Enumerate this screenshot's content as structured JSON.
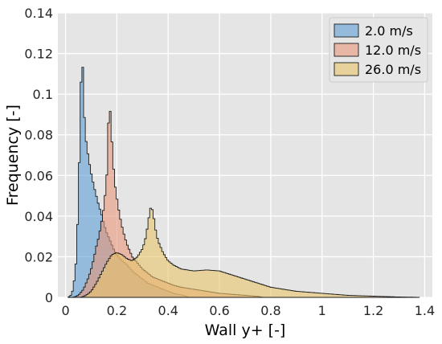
{
  "chart_data": {
    "type": "histogram",
    "title": "",
    "xlabel": "Wall y+ [-]",
    "ylabel": "Frequency [-]",
    "xlim": [
      -0.03,
      1.43
    ],
    "ylim": [
      0,
      0.14
    ],
    "xticks": [
      0,
      0.2,
      0.4,
      0.6,
      0.8,
      1,
      1.2,
      1.4
    ],
    "xtick_labels": [
      "0",
      "0.2",
      "0.4",
      "0.6",
      "0.8",
      "1",
      "1.2",
      "1.4"
    ],
    "yticks": [
      0,
      0.02,
      0.04,
      0.06,
      0.08,
      0.1,
      0.12,
      0.14
    ],
    "ytick_labels": [
      "0",
      "0.02",
      "0.04",
      "0.06",
      "0.08",
      "0.1",
      "0.12",
      "0.14"
    ],
    "grid": true,
    "legend_position": "top-right",
    "series": [
      {
        "name": "2.0 m/s",
        "color": "#5d9fd6",
        "points": [
          [
            0.01,
            0
          ],
          [
            0.02,
            0.001
          ],
          [
            0.03,
            0.004
          ],
          [
            0.04,
            0.016
          ],
          [
            0.05,
            0.045
          ],
          [
            0.055,
            0.075
          ],
          [
            0.06,
            0.105
          ],
          [
            0.065,
            0.123
          ],
          [
            0.07,
            0.098
          ],
          [
            0.075,
            0.085
          ],
          [
            0.08,
            0.077
          ],
          [
            0.09,
            0.068
          ],
          [
            0.1,
            0.061
          ],
          [
            0.11,
            0.055
          ],
          [
            0.12,
            0.05
          ],
          [
            0.13,
            0.045
          ],
          [
            0.14,
            0.041
          ],
          [
            0.15,
            0.036
          ],
          [
            0.16,
            0.032
          ],
          [
            0.17,
            0.029
          ],
          [
            0.18,
            0.026
          ],
          [
            0.19,
            0.023
          ],
          [
            0.2,
            0.021
          ],
          [
            0.22,
            0.018
          ],
          [
            0.24,
            0.016
          ],
          [
            0.26,
            0.013
          ],
          [
            0.28,
            0.011
          ],
          [
            0.3,
            0.009
          ],
          [
            0.32,
            0.007
          ],
          [
            0.34,
            0.006
          ],
          [
            0.36,
            0.005
          ],
          [
            0.38,
            0.004
          ],
          [
            0.4,
            0.003
          ],
          [
            0.42,
            0.002
          ],
          [
            0.44,
            0.0015
          ],
          [
            0.46,
            0.001
          ],
          [
            0.48,
            0
          ]
        ]
      },
      {
        "name": "12.0 m/s",
        "color": "#e8967a",
        "points": [
          [
            0.03,
            0
          ],
          [
            0.05,
            0.001
          ],
          [
            0.07,
            0.004
          ],
          [
            0.09,
            0.01
          ],
          [
            0.1,
            0.014
          ],
          [
            0.11,
            0.019
          ],
          [
            0.12,
            0.025
          ],
          [
            0.13,
            0.03
          ],
          [
            0.14,
            0.037
          ],
          [
            0.15,
            0.045
          ],
          [
            0.16,
            0.058
          ],
          [
            0.165,
            0.075
          ],
          [
            0.17,
            0.098
          ],
          [
            0.175,
            0.09
          ],
          [
            0.18,
            0.078
          ],
          [
            0.19,
            0.058
          ],
          [
            0.2,
            0.049
          ],
          [
            0.21,
            0.041
          ],
          [
            0.22,
            0.035
          ],
          [
            0.23,
            0.03
          ],
          [
            0.24,
            0.026
          ],
          [
            0.25,
            0.023
          ],
          [
            0.26,
            0.02
          ],
          [
            0.28,
            0.017
          ],
          [
            0.3,
            0.014
          ],
          [
            0.32,
            0.012
          ],
          [
            0.34,
            0.01
          ],
          [
            0.36,
            0.009
          ],
          [
            0.38,
            0.008
          ],
          [
            0.4,
            0.007
          ],
          [
            0.42,
            0.006
          ],
          [
            0.45,
            0.005
          ],
          [
            0.5,
            0.004
          ],
          [
            0.55,
            0.003
          ],
          [
            0.6,
            0.002
          ],
          [
            0.65,
            0.0015
          ],
          [
            0.7,
            0.001
          ],
          [
            0.75,
            0.0005
          ],
          [
            0.77,
            0
          ]
        ]
      },
      {
        "name": "26.0 m/s",
        "color": "#e9c46a",
        "points": [
          [
            0.06,
            0
          ],
          [
            0.08,
            0.001
          ],
          [
            0.1,
            0.003
          ],
          [
            0.12,
            0.007
          ],
          [
            0.14,
            0.012
          ],
          [
            0.16,
            0.017
          ],
          [
            0.18,
            0.021
          ],
          [
            0.2,
            0.022
          ],
          [
            0.22,
            0.021
          ],
          [
            0.24,
            0.019
          ],
          [
            0.26,
            0.018
          ],
          [
            0.28,
            0.02
          ],
          [
            0.3,
            0.024
          ],
          [
            0.31,
            0.028
          ],
          [
            0.32,
            0.035
          ],
          [
            0.33,
            0.044
          ],
          [
            0.34,
            0.043
          ],
          [
            0.35,
            0.034
          ],
          [
            0.36,
            0.028
          ],
          [
            0.38,
            0.022
          ],
          [
            0.4,
            0.018
          ],
          [
            0.42,
            0.016
          ],
          [
            0.45,
            0.014
          ],
          [
            0.5,
            0.013
          ],
          [
            0.55,
            0.0135
          ],
          [
            0.6,
            0.013
          ],
          [
            0.65,
            0.011
          ],
          [
            0.7,
            0.009
          ],
          [
            0.75,
            0.007
          ],
          [
            0.8,
            0.005
          ],
          [
            0.85,
            0.004
          ],
          [
            0.9,
            0.003
          ],
          [
            0.95,
            0.0025
          ],
          [
            1.0,
            0.002
          ],
          [
            1.05,
            0.0015
          ],
          [
            1.1,
            0.001
          ],
          [
            1.15,
            0.0008
          ],
          [
            1.2,
            0.0006
          ],
          [
            1.25,
            0.0004
          ],
          [
            1.3,
            0.0002
          ],
          [
            1.35,
            0.0001
          ],
          [
            1.38,
            0
          ]
        ]
      }
    ]
  }
}
